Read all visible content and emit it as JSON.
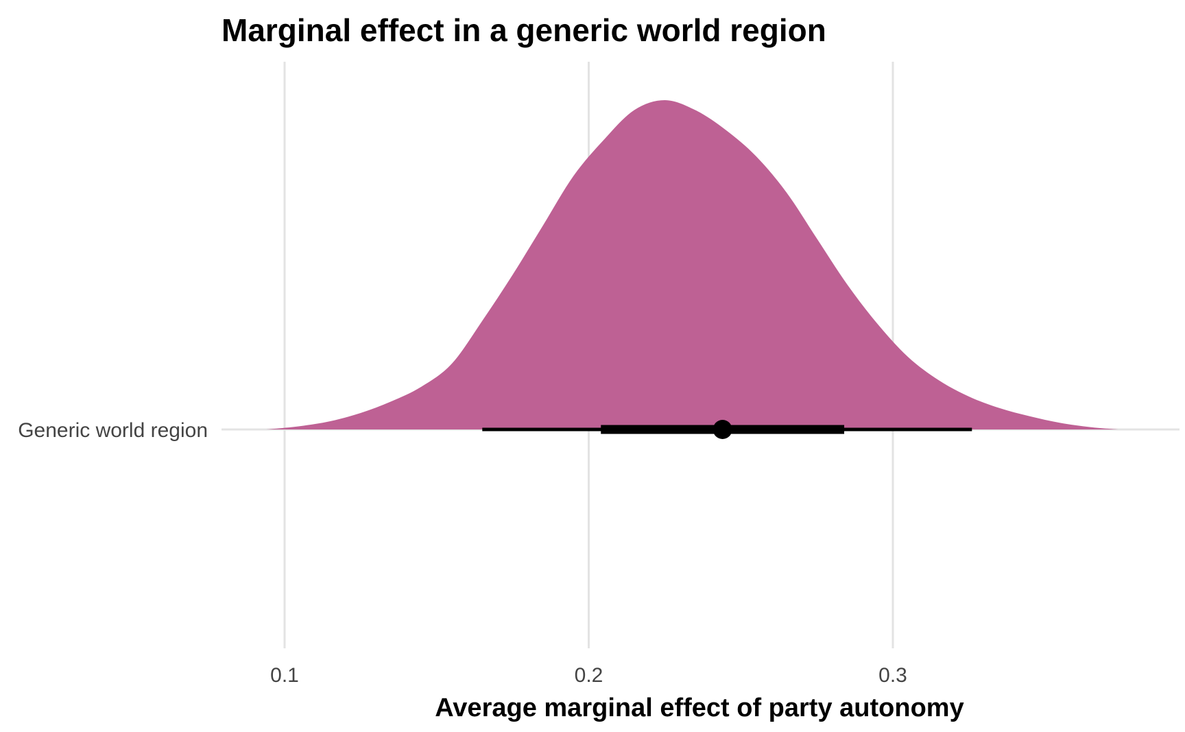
{
  "chart_data": {
    "type": "area",
    "title": "Marginal effect in a generic world region",
    "xlabel": "Average marginal effect of party autonomy",
    "ylabel": "",
    "categories": [
      "Generic world region"
    ],
    "x_ticks": [
      0.1,
      0.2,
      0.3
    ],
    "x_tick_labels": [
      "0.1",
      "0.2",
      "0.3"
    ],
    "xlim": [
      0.08,
      0.395
    ],
    "grid": "vertical",
    "legend": "none",
    "fill_color": "#be6194",
    "interval_color": "#000000",
    "density": {
      "x": [
        0.094,
        0.105,
        0.115,
        0.125,
        0.135,
        0.145,
        0.155,
        0.165,
        0.175,
        0.185,
        0.195,
        0.205,
        0.215,
        0.225,
        0.235,
        0.245,
        0.255,
        0.265,
        0.275,
        0.285,
        0.295,
        0.305,
        0.315,
        0.325,
        0.335,
        0.345,
        0.355,
        0.365,
        0.374
      ],
      "y": [
        0.0,
        0.01,
        0.025,
        0.05,
        0.085,
        0.13,
        0.2,
        0.33,
        0.47,
        0.62,
        0.77,
        0.88,
        0.97,
        1.0,
        0.97,
        0.91,
        0.83,
        0.72,
        0.58,
        0.44,
        0.32,
        0.22,
        0.15,
        0.1,
        0.065,
        0.04,
        0.02,
        0.007,
        0.0
      ]
    },
    "point_estimate": 0.244,
    "intervals": [
      {
        "level": "inner",
        "lower": 0.204,
        "upper": 0.284
      },
      {
        "level": "outer",
        "lower": 0.165,
        "upper": 0.326
      }
    ]
  }
}
